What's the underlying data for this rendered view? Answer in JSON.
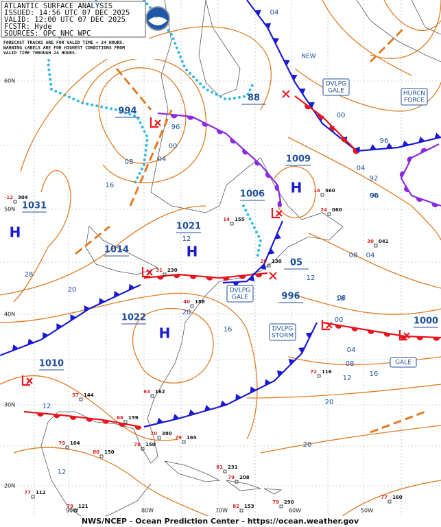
{
  "header": {
    "lines": [
      "ATLANTIC SURFACE ANALYSIS",
      "ISSUED: 14:56 UTC 07 DEC 2025",
      "VALID:  12:00 UTC 07 DEC 2025",
      "FCSTR:  Hyde",
      "SOURCES: OPC NHC WPC"
    ],
    "notes": [
      "FORECAST TRACKS ARE FOR VALID TIME + 24 HOURS.",
      "WARNING LABELS ARE FOR HIGHEST CONDITIONS FROM",
      "VALID TIME THROUGH 24 HOURS."
    ],
    "logo": "NOAA"
  },
  "centers": [
    {
      "symbol": "H",
      "pressure": "1031"
    },
    {
      "symbol": "H",
      "pressure": "1021"
    },
    {
      "symbol": "H",
      "pressure": "1022"
    },
    {
      "symbol": "H",
      "pressure": "1009"
    },
    {
      "symbol": "L",
      "pressure": "994"
    },
    {
      "symbol": "L",
      "pressure": "1006"
    },
    {
      "symbol": "L",
      "pressure": "1014"
    },
    {
      "symbol": "L",
      "pressure": "1010"
    },
    {
      "symbol": "L",
      "pressure": "996"
    },
    {
      "symbol": "L",
      "pressure": "1000"
    },
    {
      "symbol": "L",
      "pressure": "05"
    },
    {
      "symbol": "L",
      "pressure": "88"
    }
  ],
  "warnings": [
    {
      "lines": [
        "DVLPG",
        "GALE"
      ]
    },
    {
      "lines": [
        "HURCN",
        "FORCE"
      ]
    },
    {
      "lines": [
        "DVLPG",
        "GALE"
      ]
    },
    {
      "lines": [
        "DVLPG",
        "STORM"
      ]
    },
    {
      "lines": [
        "GALE"
      ]
    }
  ],
  "isobar_labels": [
    "04",
    "00",
    "96",
    "08",
    "04",
    "00",
    "16",
    "28",
    "20",
    "12",
    "20",
    "16",
    "12",
    "04",
    "00",
    "96",
    "92",
    "96",
    "00",
    "04",
    "08",
    "04",
    "08",
    "12",
    "16",
    "20",
    "20",
    "12",
    "08",
    "12",
    "16"
  ],
  "latitudes": [
    "60N",
    "50N",
    "40N",
    "30N",
    "20N"
  ],
  "longitudes": [
    "90W",
    "80W",
    "70W",
    "60W",
    "50W"
  ],
  "annotations": [
    "NEW"
  ],
  "stations": [
    {
      "temp": "-12",
      "pres": "304"
    },
    {
      "temp": "16",
      "pres": "560"
    },
    {
      "temp": "24",
      "pres": "060"
    },
    {
      "temp": "30",
      "pres": "041"
    },
    {
      "temp": "14",
      "pres": "155"
    },
    {
      "temp": "26",
      "pres": "130"
    },
    {
      "temp": "31",
      "pres": "230"
    },
    {
      "temp": "40",
      "pres": "188"
    },
    {
      "temp": "63",
      "pres": "162"
    },
    {
      "temp": "66",
      "pres": "159"
    },
    {
      "temp": "57",
      "pres": "144"
    },
    {
      "temp": "72",
      "pres": "116"
    },
    {
      "temp": "79",
      "pres": "104"
    },
    {
      "temp": "80",
      "pres": "150"
    },
    {
      "temp": "78",
      "pres": "150"
    },
    {
      "temp": "70",
      "pres": "380"
    },
    {
      "temp": "81",
      "pres": "231"
    },
    {
      "temp": "79",
      "pres": "208"
    },
    {
      "temp": "77",
      "pres": "112"
    },
    {
      "temp": "79",
      "pres": "121"
    },
    {
      "temp": "82",
      "pres": "153"
    },
    {
      "temp": "79",
      "pres": "290"
    },
    {
      "temp": "77",
      "pres": "160"
    },
    {
      "temp": "79",
      "pres": "165"
    }
  ],
  "footer": "NWS/NCEP - Ocean Prediction Center - https://ocean.weather.gov"
}
